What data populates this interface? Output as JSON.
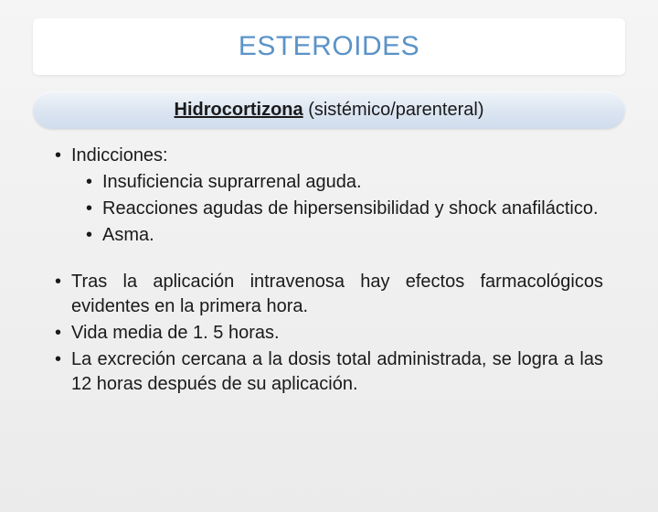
{
  "title": "ESTEROIDES",
  "subtitle_bold": "Hidrocortizona",
  "subtitle_rest": " (sistémico/parenteral)",
  "section1": {
    "heading": "Indicciones:",
    "items": [
      "Insuficiencia suprarrenal aguda.",
      "Reacciones agudas de hipersensibilidad y shock anafiláctico.",
      "Asma."
    ]
  },
  "section2": {
    "items": [
      "Tras la aplicación intravenosa hay efectos farmacológicos evidentes en la primera hora.",
      "Vida media de 1. 5 horas.",
      "La excreción cercana a la dosis total administrada, se logra a las 12 horas después de su aplicación."
    ]
  },
  "colors": {
    "title_color": "#5b93c8",
    "text_color": "#1a1a1a",
    "title_bg": "#ffffff",
    "pill_gradient_top": "#f0f4f9",
    "pill_gradient_bottom": "#d0dcec",
    "slide_bg_top": "#f5f5f5",
    "slide_bg_bottom": "#ebebeb"
  },
  "typography": {
    "title_fontsize": 30,
    "subtitle_fontsize": 20,
    "body_fontsize": 20,
    "font_family": "Arial"
  },
  "bullet_char": "•"
}
